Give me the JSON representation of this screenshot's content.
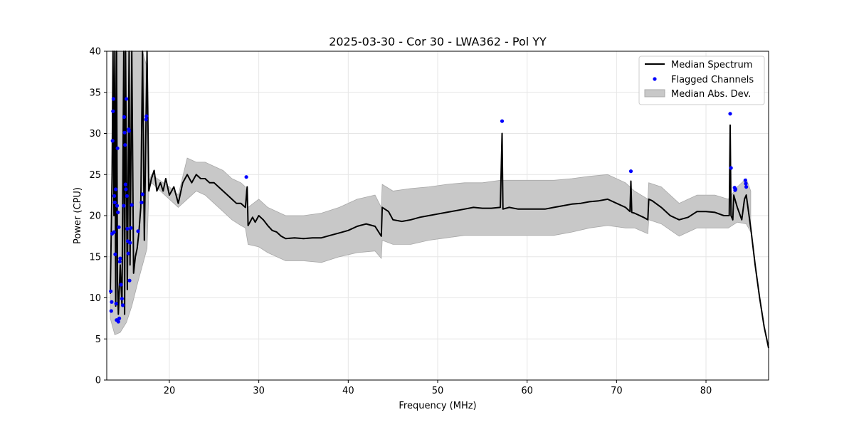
{
  "chart_data": {
    "type": "line",
    "title": "2025-03-30 - Cor 30 - LWA362 - Pol YY",
    "xlabel": "Frequency (MHz)",
    "ylabel": "Power (CPU)",
    "xlim": [
      13.0,
      87.0
    ],
    "ylim": [
      0,
      40
    ],
    "xticks": [
      20,
      30,
      40,
      50,
      60,
      70,
      80
    ],
    "yticks": [
      0,
      5,
      10,
      15,
      20,
      25,
      30,
      35,
      40
    ],
    "grid": true,
    "legend_position": "top-right",
    "legend": [
      {
        "label": "Median Spectrum",
        "kind": "line",
        "color": "#000000"
      },
      {
        "label": "Flagged Channels",
        "kind": "marker",
        "color": "#0000ff"
      },
      {
        "label": "Median Abs. Dev.",
        "kind": "patch",
        "color": "#c8c8c8"
      }
    ],
    "series": [
      {
        "name": "Median Spectrum",
        "color": "#000000",
        "points": [
          [
            13.4,
            10.5
          ],
          [
            13.6,
            25
          ],
          [
            13.7,
            40
          ],
          [
            13.8,
            20
          ],
          [
            13.9,
            40
          ],
          [
            14.0,
            9
          ],
          [
            14.1,
            40
          ],
          [
            14.2,
            12
          ],
          [
            14.3,
            8
          ],
          [
            14.5,
            14
          ],
          [
            14.7,
            9
          ],
          [
            14.9,
            40
          ],
          [
            15.0,
            8
          ],
          [
            15.1,
            40
          ],
          [
            15.3,
            11
          ],
          [
            15.5,
            40
          ],
          [
            15.6,
            14
          ],
          [
            15.8,
            40
          ],
          [
            16.0,
            13
          ],
          [
            16.2,
            15
          ],
          [
            16.4,
            16
          ],
          [
            16.6,
            18
          ],
          [
            16.8,
            21
          ],
          [
            17.0,
            40
          ],
          [
            17.2,
            17
          ],
          [
            17.5,
            40
          ],
          [
            17.7,
            23
          ],
          [
            18.0,
            24.5
          ],
          [
            18.3,
            25.5
          ],
          [
            18.6,
            23
          ],
          [
            19.0,
            24
          ],
          [
            19.3,
            23
          ],
          [
            19.6,
            24.5
          ],
          [
            20.0,
            22.5
          ],
          [
            20.5,
            23.5
          ],
          [
            21.0,
            21.5
          ],
          [
            21.5,
            24
          ],
          [
            22.0,
            25
          ],
          [
            22.5,
            24
          ],
          [
            23.0,
            25
          ],
          [
            23.5,
            24.5
          ],
          [
            24.0,
            24.5
          ],
          [
            24.5,
            24
          ],
          [
            25.0,
            24
          ],
          [
            25.5,
            23.5
          ],
          [
            26.0,
            23
          ],
          [
            26.5,
            22.5
          ],
          [
            27.0,
            22
          ],
          [
            27.5,
            21.5
          ],
          [
            28.0,
            21.5
          ],
          [
            28.5,
            21
          ],
          [
            28.7,
            23.5
          ],
          [
            28.8,
            18.8
          ],
          [
            29.3,
            19.8
          ],
          [
            29.6,
            19.2
          ],
          [
            30.0,
            20
          ],
          [
            30.5,
            19.5
          ],
          [
            31.0,
            18.8
          ],
          [
            31.5,
            18.2
          ],
          [
            32.0,
            18
          ],
          [
            32.5,
            17.5
          ],
          [
            33.0,
            17.2
          ],
          [
            34.0,
            17.3
          ],
          [
            35.0,
            17.2
          ],
          [
            36.0,
            17.3
          ],
          [
            37.0,
            17.3
          ],
          [
            38.0,
            17.6
          ],
          [
            39.0,
            17.9
          ],
          [
            40.0,
            18.2
          ],
          [
            41.0,
            18.7
          ],
          [
            42.0,
            19
          ],
          [
            43.0,
            18.7
          ],
          [
            43.7,
            17.5
          ],
          [
            43.8,
            21
          ],
          [
            44.5,
            20.5
          ],
          [
            45.0,
            19.5
          ],
          [
            46.0,
            19.3
          ],
          [
            47.0,
            19.5
          ],
          [
            48.0,
            19.8
          ],
          [
            49.0,
            20
          ],
          [
            50.0,
            20.2
          ],
          [
            51.0,
            20.4
          ],
          [
            52.0,
            20.6
          ],
          [
            53.0,
            20.8
          ],
          [
            54.0,
            21
          ],
          [
            55.0,
            20.9
          ],
          [
            56.0,
            20.9
          ],
          [
            57.0,
            21
          ],
          [
            57.2,
            30
          ],
          [
            57.3,
            20.8
          ],
          [
            58.0,
            21
          ],
          [
            59.0,
            20.8
          ],
          [
            60.0,
            20.8
          ],
          [
            61.0,
            20.8
          ],
          [
            62.0,
            20.8
          ],
          [
            63.0,
            21
          ],
          [
            64.0,
            21.2
          ],
          [
            65.0,
            21.4
          ],
          [
            66.0,
            21.5
          ],
          [
            67.0,
            21.7
          ],
          [
            68.0,
            21.8
          ],
          [
            69.0,
            22
          ],
          [
            70.0,
            21.5
          ],
          [
            71.0,
            21
          ],
          [
            71.5,
            20.5
          ],
          [
            71.6,
            24.2
          ],
          [
            71.7,
            20.4
          ],
          [
            72.0,
            20.3
          ],
          [
            73.0,
            19.8
          ],
          [
            73.5,
            19.5
          ],
          [
            73.6,
            22
          ],
          [
            74.0,
            21.8
          ],
          [
            75.0,
            21
          ],
          [
            76.0,
            20
          ],
          [
            77.0,
            19.5
          ],
          [
            78.0,
            19.8
          ],
          [
            79.0,
            20.5
          ],
          [
            80.0,
            20.5
          ],
          [
            81.0,
            20.4
          ],
          [
            82.0,
            20
          ],
          [
            82.6,
            20
          ],
          [
            82.7,
            31
          ],
          [
            82.8,
            20
          ],
          [
            83.0,
            19.5
          ],
          [
            83.1,
            22.5
          ],
          [
            83.5,
            21
          ],
          [
            84.0,
            19.5
          ],
          [
            84.3,
            22
          ],
          [
            84.5,
            22.5
          ],
          [
            85.0,
            18.5
          ],
          [
            85.5,
            14
          ],
          [
            86.0,
            10
          ],
          [
            86.5,
            6.5
          ],
          [
            87.0,
            3.9
          ]
        ]
      },
      {
        "name": "Median Abs. Dev.",
        "color": "#c8c8c8",
        "band": [
          [
            13.4,
            7.5,
            13.5
          ],
          [
            13.9,
            5.5,
            40
          ],
          [
            14.5,
            5.8,
            40
          ],
          [
            15.2,
            7,
            40
          ],
          [
            15.8,
            9,
            40
          ],
          [
            16.5,
            12,
            40
          ],
          [
            17.0,
            14,
            40
          ],
          [
            17.5,
            16,
            38
          ],
          [
            17.7,
            23,
            24
          ],
          [
            18.0,
            24,
            25
          ],
          [
            20.0,
            22,
            23.5
          ],
          [
            21.0,
            21,
            22.5
          ],
          [
            22.0,
            22,
            27
          ],
          [
            23.0,
            23,
            26.5
          ],
          [
            24.0,
            22.5,
            26.5
          ],
          [
            25.0,
            21.5,
            26
          ],
          [
            26.0,
            20.5,
            25.5
          ],
          [
            27.0,
            19.5,
            24.5
          ],
          [
            28.0,
            18.8,
            24
          ],
          [
            28.5,
            18.5,
            23.5
          ],
          [
            28.8,
            16.5,
            21
          ],
          [
            30.0,
            16.2,
            22
          ],
          [
            31.0,
            15.5,
            21
          ],
          [
            32.0,
            15,
            20.5
          ],
          [
            33.0,
            14.5,
            20
          ],
          [
            35.0,
            14.5,
            20
          ],
          [
            37.0,
            14.3,
            20.3
          ],
          [
            39.0,
            15,
            21
          ],
          [
            41.0,
            15.5,
            22
          ],
          [
            43.0,
            15.7,
            22.5
          ],
          [
            43.7,
            14.8,
            21
          ],
          [
            43.8,
            17,
            23.8
          ],
          [
            45.0,
            16.5,
            23
          ],
          [
            47.0,
            16.5,
            23.3
          ],
          [
            49.0,
            17,
            23.5
          ],
          [
            51.0,
            17.3,
            23.8
          ],
          [
            53.0,
            17.6,
            24
          ],
          [
            55.0,
            17.6,
            24
          ],
          [
            57.0,
            17.6,
            24.3
          ],
          [
            59.0,
            17.6,
            24.3
          ],
          [
            61.0,
            17.6,
            24.3
          ],
          [
            63.0,
            17.6,
            24.3
          ],
          [
            65.0,
            18,
            24.5
          ],
          [
            67.0,
            18.5,
            24.8
          ],
          [
            69.0,
            18.8,
            25
          ],
          [
            71.0,
            18.5,
            24
          ],
          [
            72.0,
            18.5,
            23
          ],
          [
            73.5,
            17.8,
            22
          ],
          [
            73.6,
            19.5,
            24
          ],
          [
            75.0,
            19,
            23.5
          ],
          [
            77.0,
            17.5,
            21.5
          ],
          [
            79.0,
            18.5,
            22.5
          ],
          [
            81.0,
            18.5,
            22.5
          ],
          [
            82.5,
            18.5,
            22
          ],
          [
            83.5,
            19.2,
            23.5
          ],
          [
            84.5,
            19,
            24.5
          ],
          [
            85.0,
            18,
            23
          ]
        ]
      },
      {
        "name": "Flagged Channels",
        "color": "#0000ff",
        "points": [
          [
            13.45,
            10.8
          ],
          [
            13.5,
            8.4
          ],
          [
            13.55,
            9.5
          ],
          [
            13.6,
            17.8
          ],
          [
            13.65,
            29.1
          ],
          [
            13.7,
            32.7
          ],
          [
            13.75,
            34.2
          ],
          [
            13.8,
            18
          ],
          [
            13.85,
            22.4
          ],
          [
            13.9,
            21.6
          ],
          [
            13.95,
            15.3
          ],
          [
            14.0,
            23.2
          ],
          [
            14.05,
            9.3
          ],
          [
            14.1,
            7.3
          ],
          [
            14.15,
            21.2
          ],
          [
            14.2,
            28.2
          ],
          [
            14.25,
            20.4
          ],
          [
            14.3,
            7.1
          ],
          [
            14.35,
            18.6
          ],
          [
            14.4,
            7.5
          ],
          [
            14.45,
            14.4
          ],
          [
            14.5,
            14.8
          ],
          [
            14.6,
            11.6
          ],
          [
            14.7,
            9.9
          ],
          [
            14.8,
            9.1
          ],
          [
            14.9,
            21.2
          ],
          [
            14.95,
            32
          ],
          [
            15.0,
            30.1
          ],
          [
            15.05,
            28.6
          ],
          [
            15.1,
            23.8
          ],
          [
            15.15,
            23.2
          ],
          [
            15.2,
            34.2
          ],
          [
            15.25,
            22.4
          ],
          [
            15.3,
            18.4
          ],
          [
            15.35,
            16.9
          ],
          [
            15.4,
            15.4
          ],
          [
            15.45,
            30.5
          ],
          [
            15.5,
            30.3
          ],
          [
            15.55,
            12.1
          ],
          [
            15.6,
            16.7
          ],
          [
            15.7,
            18.5
          ],
          [
            15.8,
            21.3
          ],
          [
            16.5,
            18.1
          ],
          [
            16.9,
            21.6
          ],
          [
            17.0,
            22.6
          ],
          [
            17.4,
            31.7
          ],
          [
            17.45,
            32.1
          ],
          [
            28.6,
            24.7
          ],
          [
            57.2,
            31.5
          ],
          [
            71.6,
            25.4
          ],
          [
            82.7,
            32.4
          ],
          [
            82.8,
            25.8
          ],
          [
            83.2,
            23.4
          ],
          [
            83.25,
            23.1
          ],
          [
            83.3,
            23.2
          ],
          [
            84.4,
            24.3
          ],
          [
            84.45,
            23.9
          ],
          [
            84.5,
            23.5
          ]
        ]
      }
    ]
  }
}
